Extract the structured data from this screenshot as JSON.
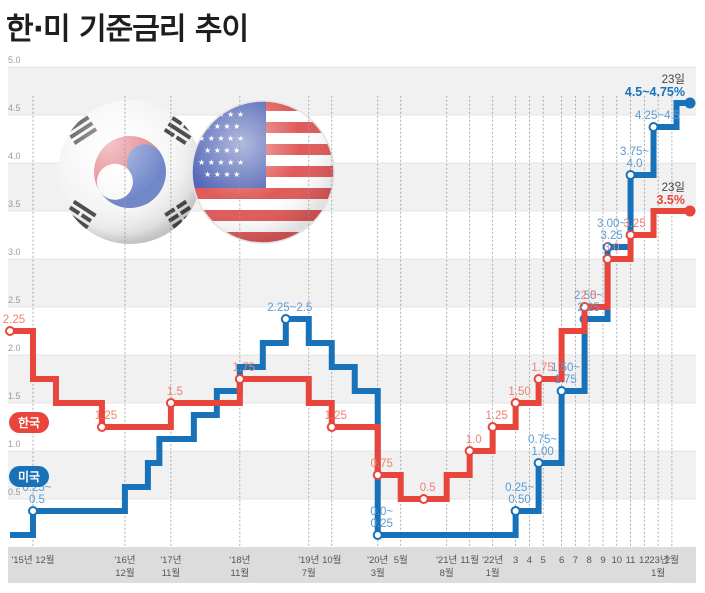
{
  "chart_data": {
    "type": "line",
    "title": "한·미 기준금리 추이",
    "ylim": [
      0,
      5.0
    ],
    "y_ticks": [
      "5.0",
      "4.5",
      "4.0",
      "3.5",
      "3.0",
      "2.5",
      "2.0",
      "1.5",
      "1.0",
      "0.5"
    ],
    "x_labels": [
      {
        "text": "'15년 12월",
        "x": 1
      },
      {
        "text": "'16년\n12월",
        "x": 5
      },
      {
        "text": "'17년\n11월",
        "x": 7
      },
      {
        "text": "'18년\n11월",
        "x": 10
      },
      {
        "text": "'19년\n7월",
        "x": 13
      },
      {
        "text": "10월",
        "x": 14
      },
      {
        "text": "'20년\n3월",
        "x": 16
      },
      {
        "text": "5월",
        "x": 17
      },
      {
        "text": "'21년\n8월",
        "x": 19
      },
      {
        "text": "11월",
        "x": 20
      },
      {
        "text": "'22년\n1월",
        "x": 21
      },
      {
        "text": "3",
        "x": 22
      },
      {
        "text": "4",
        "x": 22.6
      },
      {
        "text": "5",
        "x": 23.2
      },
      {
        "text": "6",
        "x": 24
      },
      {
        "text": "7",
        "x": 24.6
      },
      {
        "text": "8",
        "x": 25.2
      },
      {
        "text": "9",
        "x": 25.8
      },
      {
        "text": "10",
        "x": 26.4
      },
      {
        "text": "11",
        "x": 27.0
      },
      {
        "text": "12",
        "x": 27.6
      },
      {
        "text": "'23년\n1월",
        "x": 28.2
      },
      {
        "text": "2월",
        "x": 28.8
      }
    ],
    "series": [
      {
        "name": "한국",
        "color": "#e8453c",
        "steps": [
          {
            "x": 0,
            "y": 2.25
          },
          {
            "x": 1,
            "y": 1.75
          },
          {
            "x": 2,
            "y": 1.5
          },
          {
            "x": 4,
            "y": 1.25
          },
          {
            "x": 7,
            "y": 1.5
          },
          {
            "x": 9,
            "y": 1.5
          },
          {
            "x": 10,
            "y": 1.75
          },
          {
            "x": 12,
            "y": 1.75
          },
          {
            "x": 13,
            "y": 1.5
          },
          {
            "x": 14,
            "y": 1.25
          },
          {
            "x": 16,
            "y": 0.75
          },
          {
            "x": 17,
            "y": 0.5
          },
          {
            "x": 19,
            "y": 0.75
          },
          {
            "x": 20,
            "y": 1.0
          },
          {
            "x": 21,
            "y": 1.25
          },
          {
            "x": 22,
            "y": 1.5
          },
          {
            "x": 23,
            "y": 1.75
          },
          {
            "x": 24,
            "y": 2.25
          },
          {
            "x": 25,
            "y": 2.5
          },
          {
            "x": 26,
            "y": 3.0
          },
          {
            "x": 27,
            "y": 3.25
          },
          {
            "x": 28,
            "y": 3.5
          },
          {
            "x": 29.5,
            "y": 3.5
          }
        ],
        "labels": [
          {
            "x": 0,
            "y": 2.25,
            "text": "2.25"
          },
          {
            "x": 4,
            "y": 1.25,
            "text": "1.25"
          },
          {
            "x": 7,
            "y": 1.5,
            "text": "1.5"
          },
          {
            "x": 10,
            "y": 1.75,
            "text": "1.75"
          },
          {
            "x": 14,
            "y": 1.25,
            "text": "1.25"
          },
          {
            "x": 16,
            "y": 0.75,
            "text": "0.75"
          },
          {
            "x": 18,
            "y": 0.5,
            "text": "0.5"
          },
          {
            "x": 20,
            "y": 1.0,
            "text": "1.0"
          },
          {
            "x": 21,
            "y": 1.25,
            "text": "1.25"
          },
          {
            "x": 22,
            "y": 1.5,
            "text": "1.50"
          },
          {
            "x": 23,
            "y": 1.75,
            "text": "1.75"
          },
          {
            "x": 25,
            "y": 2.5,
            "text": "2.5"
          },
          {
            "x": 26,
            "y": 3.0,
            "text": "3.0"
          },
          {
            "x": 27,
            "y": 3.25,
            "text": "3.25"
          }
        ],
        "end_label": {
          "date": "23일",
          "value": "3.5%"
        }
      },
      {
        "name": "미국",
        "color": "#1872b9",
        "steps": [
          {
            "x": 0,
            "y": 0.125
          },
          {
            "x": 1,
            "y": 0.375
          },
          {
            "x": 5,
            "y": 0.625
          },
          {
            "x": 6,
            "y": 0.875
          },
          {
            "x": 6.5,
            "y": 1.125
          },
          {
            "x": 7,
            "y": 1.125
          },
          {
            "x": 8,
            "y": 1.375
          },
          {
            "x": 9,
            "y": 1.625
          },
          {
            "x": 10,
            "y": 1.875
          },
          {
            "x": 11,
            "y": 2.125
          },
          {
            "x": 12,
            "y": 2.375
          },
          {
            "x": 13,
            "y": 2.125
          },
          {
            "x": 14,
            "y": 1.875
          },
          {
            "x": 15,
            "y": 1.625
          },
          {
            "x": 16,
            "y": 0.125
          },
          {
            "x": 22,
            "y": 0.375
          },
          {
            "x": 23,
            "y": 0.875
          },
          {
            "x": 24,
            "y": 1.625
          },
          {
            "x": 25,
            "y": 2.375
          },
          {
            "x": 26,
            "y": 3.125
          },
          {
            "x": 27,
            "y": 3.875
          },
          {
            "x": 28,
            "y": 4.375
          },
          {
            "x": 29,
            "y": 4.625
          },
          {
            "x": 29.5,
            "y": 4.625
          }
        ],
        "labels": [
          {
            "x": 1,
            "y": 0.375,
            "text": "0.25~\n0.5"
          },
          {
            "x": 12,
            "y": 2.375,
            "text": "2.25~2.5"
          },
          {
            "x": 16,
            "y": 0.125,
            "text": "0.0~\n0.25"
          },
          {
            "x": 22,
            "y": 0.375,
            "text": "0.25~\n0.50"
          },
          {
            "x": 23,
            "y": 0.875,
            "text": "0.75~\n1.00"
          },
          {
            "x": 24,
            "y": 1.625,
            "text": "1.50~\n1.75"
          },
          {
            "x": 25,
            "y": 2.375,
            "text": "2.50~\n2.25"
          },
          {
            "x": 26,
            "y": 3.125,
            "text": "3.00~\n3.25"
          },
          {
            "x": 27,
            "y": 3.875,
            "text": "3.75~\n4.0"
          },
          {
            "x": 28,
            "y": 4.375,
            "text": "4.25~4.5"
          }
        ],
        "end_label": {
          "date": "23일",
          "value": "4.5~4.75%"
        }
      }
    ]
  },
  "flags": {
    "korea": "korea-flag-icon",
    "usa": "usa-flag-icon"
  },
  "colors": {
    "korea": "#e8453c",
    "usa": "#1872b9",
    "band": "#f1f1f1",
    "xbar": "#dcdcdc"
  }
}
